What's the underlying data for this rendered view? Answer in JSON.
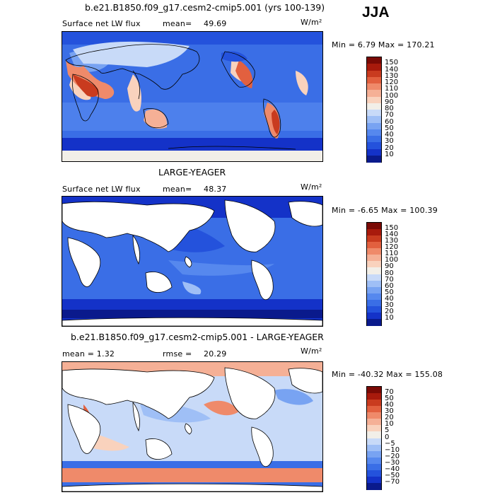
{
  "season": "JJA",
  "panels": [
    {
      "title": "b.e21.B1850.f09_g17.cesm2-cmip5.001 (yrs 100-139)",
      "left_label": "Surface net LW flux",
      "stat_label": "mean=",
      "stat_value": "49.69",
      "units": "W/m²",
      "minmax": "Min =   6.79 Max = 170.21",
      "colorbar_labels": [
        "150",
        "140",
        "130",
        "120",
        "110",
        "100",
        "90",
        "80",
        "70",
        "60",
        "50",
        "40",
        "30",
        "20",
        "10"
      ]
    },
    {
      "title": "LARGE-YEAGER",
      "left_label": "Surface net LW flux",
      "stat_label": "mean=",
      "stat_value": "48.37",
      "units": "W/m²",
      "minmax": "Min =  -6.65 Max = 100.39",
      "colorbar_labels": [
        "150",
        "140",
        "130",
        "120",
        "110",
        "100",
        "90",
        "80",
        "70",
        "60",
        "50",
        "40",
        "30",
        "20",
        "10"
      ]
    },
    {
      "title": "b.e21.B1850.f09_g17.cesm2-cmip5.001 - LARGE-YEAGER",
      "left_label": "mean =    1.32",
      "stat_label": "rmse =",
      "stat_value": "20.29",
      "units": "W/m²",
      "minmax": "Min = -40.32 Max = 155.08",
      "colorbar_labels": [
        "70",
        "50",
        "40",
        "30",
        "20",
        "10",
        "5",
        "0",
        "−5",
        "−10",
        "−20",
        "−30",
        "−40",
        "−50",
        "−70"
      ]
    }
  ],
  "chart_data": [
    {
      "type": "heatmap",
      "title": "b.e21.B1850.f09_g17.cesm2-cmip5.001 (yrs 100-139)",
      "variable": "Surface net LW flux",
      "units": "W/m2",
      "mean": 49.69,
      "min": 6.79,
      "max": 170.21,
      "colorbar_levels": [
        10,
        20,
        30,
        40,
        50,
        60,
        70,
        80,
        90,
        100,
        110,
        120,
        130,
        140,
        150
      ],
      "colors": [
        "#0a1a8c",
        "#1432c8",
        "#2452dc",
        "#3a6ee6",
        "#5688ee",
        "#78a3f2",
        "#9fbff6",
        "#c8daf8",
        "#f2efe8",
        "#f9d2bd",
        "#f5b096",
        "#ef8a6a",
        "#e2603f",
        "#c93b1f",
        "#a81a0c",
        "#7a0a05"
      ]
    },
    {
      "type": "heatmap",
      "title": "LARGE-YEAGER",
      "variable": "Surface net LW flux",
      "units": "W/m2",
      "mean": 48.37,
      "min": -6.65,
      "max": 100.39,
      "colorbar_levels": [
        10,
        20,
        30,
        40,
        50,
        60,
        70,
        80,
        90,
        100,
        110,
        120,
        130,
        140,
        150
      ],
      "colors": [
        "#0a1a8c",
        "#1432c8",
        "#2452dc",
        "#3a6ee6",
        "#5688ee",
        "#78a3f2",
        "#9fbff6",
        "#c8daf8",
        "#f2efe8",
        "#f9d2bd",
        "#f5b096",
        "#ef8a6a",
        "#e2603f",
        "#c93b1f",
        "#a81a0c",
        "#7a0a05"
      ]
    },
    {
      "type": "heatmap",
      "title": "b.e21.B1850.f09_g17.cesm2-cmip5.001 - LARGE-YEAGER",
      "units": "W/m2",
      "mean": 1.32,
      "rmse": 20.29,
      "min": -40.32,
      "max": 155.08,
      "colorbar_levels": [
        -70,
        -50,
        -40,
        -30,
        -20,
        -10,
        -5,
        0,
        5,
        10,
        20,
        30,
        40,
        50,
        70
      ],
      "colors": [
        "#0a1a8c",
        "#1432c8",
        "#2452dc",
        "#3a6ee6",
        "#5688ee",
        "#78a3f2",
        "#9fbff6",
        "#c8daf8",
        "#f2efe8",
        "#f9d2bd",
        "#f5b096",
        "#ef8a6a",
        "#e2603f",
        "#c93b1f",
        "#a81a0c",
        "#7a0a05"
      ]
    }
  ]
}
